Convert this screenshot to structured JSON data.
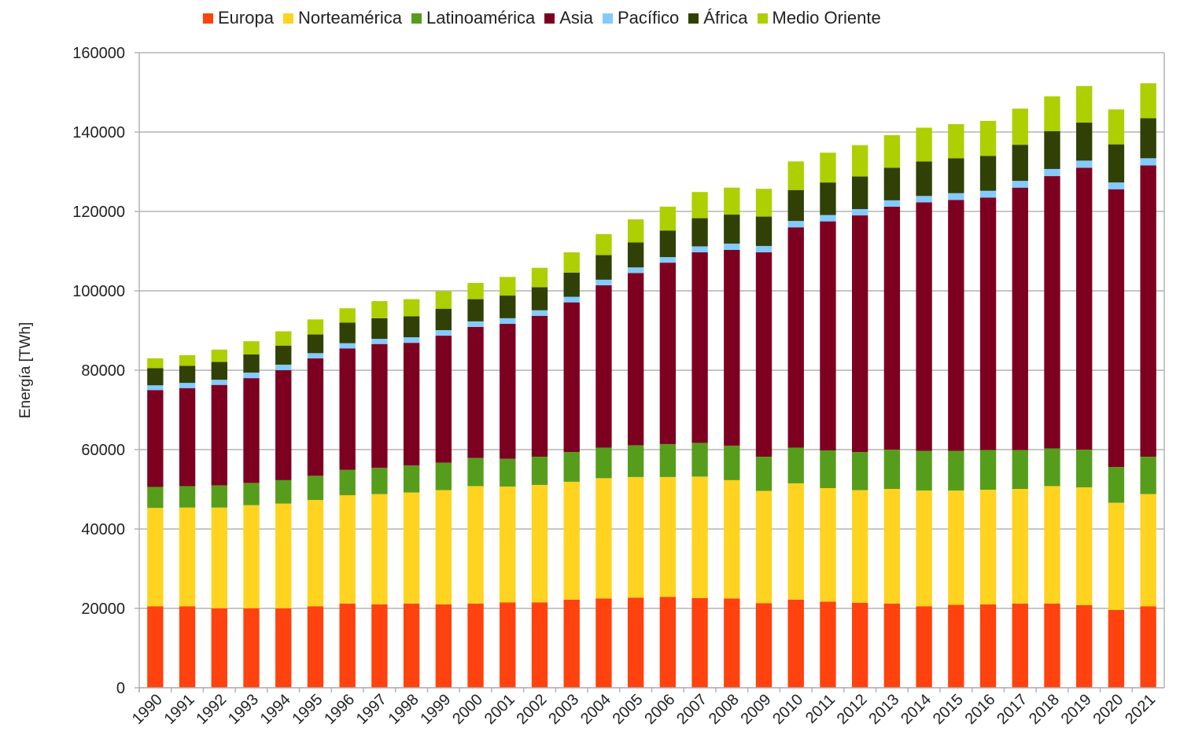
{
  "chart_data": {
    "type": "bar",
    "stacked": true,
    "title": "",
    "xlabel": "",
    "ylabel": "Energía [TWh]",
    "ylim": [
      0,
      160000
    ],
    "yticks": [
      0,
      20000,
      40000,
      60000,
      80000,
      100000,
      120000,
      140000,
      160000
    ],
    "ytick_labels": [
      "0",
      "20000",
      "40000",
      "60000",
      "80000",
      "100000",
      "120000",
      "140000",
      "160000"
    ],
    "grid": true,
    "legend_position": "top-center",
    "categories": [
      "1990",
      "1991",
      "1992",
      "1993",
      "1994",
      "1995",
      "1996",
      "1997",
      "1998",
      "1999",
      "2000",
      "2001",
      "2002",
      "2003",
      "2004",
      "2005",
      "2006",
      "2007",
      "2008",
      "2009",
      "2010",
      "2011",
      "2012",
      "2013",
      "2014",
      "2015",
      "2016",
      "2017",
      "2018",
      "2019",
      "2020",
      "2021"
    ],
    "series": [
      {
        "name": "Europa",
        "color": "#ff420e",
        "values": [
          20500,
          20500,
          20000,
          20000,
          20000,
          20500,
          21200,
          21000,
          21200,
          21000,
          21200,
          21500,
          21500,
          22200,
          22500,
          22700,
          22900,
          22600,
          22500,
          21300,
          22200,
          21700,
          21400,
          21200,
          20500,
          20900,
          21000,
          21200,
          21200,
          20800,
          19600,
          20500
        ]
      },
      {
        "name": "Norteamérica",
        "color": "#ffd320",
        "values": [
          24800,
          24900,
          25400,
          26000,
          26400,
          26800,
          27300,
          27800,
          28000,
          28800,
          29600,
          29200,
          29600,
          29700,
          30300,
          30400,
          30200,
          30600,
          29800,
          28300,
          29300,
          28600,
          28400,
          28900,
          29200,
          28800,
          28900,
          28900,
          29600,
          29700,
          27000,
          28300
        ]
      },
      {
        "name": "Latinoamérica",
        "color": "#579d1c",
        "values": [
          5300,
          5400,
          5600,
          5600,
          5900,
          6100,
          6400,
          6600,
          6800,
          6900,
          7100,
          7000,
          7100,
          7500,
          7700,
          8000,
          8300,
          8500,
          8700,
          8600,
          9000,
          9500,
          9600,
          9900,
          10000,
          10000,
          10000,
          9800,
          9500,
          9500,
          9000,
          9400
        ]
      },
      {
        "name": "Asia",
        "color": "#7e0021",
        "values": [
          24400,
          24700,
          25300,
          26400,
          27700,
          29600,
          30600,
          31200,
          30900,
          32000,
          33000,
          34000,
          35500,
          37700,
          40900,
          43400,
          45700,
          48000,
          49300,
          51500,
          55500,
          57700,
          59600,
          61200,
          62600,
          63200,
          63600,
          66100,
          68600,
          71000,
          70000,
          73400
        ]
      },
      {
        "name": "Pacífico",
        "color": "#83caff",
        "values": [
          1200,
          1300,
          1300,
          1400,
          1400,
          1300,
          1300,
          1300,
          1400,
          1400,
          1400,
          1400,
          1400,
          1400,
          1400,
          1400,
          1400,
          1500,
          1600,
          1600,
          1600,
          1600,
          1600,
          1600,
          1600,
          1700,
          1700,
          1700,
          1800,
          1800,
          1700,
          1800
        ]
      },
      {
        "name": "África",
        "color": "#314004",
        "values": [
          4300,
          4300,
          4500,
          4600,
          4800,
          4700,
          5200,
          5200,
          5300,
          5400,
          5600,
          5700,
          5800,
          6100,
          6200,
          6300,
          6700,
          7100,
          7300,
          7400,
          7800,
          8200,
          8200,
          8200,
          8700,
          8800,
          8800,
          9100,
          9500,
          9600,
          9600,
          10100
        ]
      },
      {
        "name": "Medio Oriente",
        "color": "#aecf00",
        "values": [
          2500,
          2700,
          3100,
          3300,
          3600,
          3800,
          3600,
          4300,
          4300,
          4400,
          4100,
          4700,
          4900,
          5100,
          5300,
          5800,
          6000,
          6600,
          6800,
          7000,
          7200,
          7500,
          7900,
          8200,
          8500,
          8600,
          8800,
          9100,
          8800,
          9200,
          8800,
          8800
        ]
      }
    ]
  }
}
